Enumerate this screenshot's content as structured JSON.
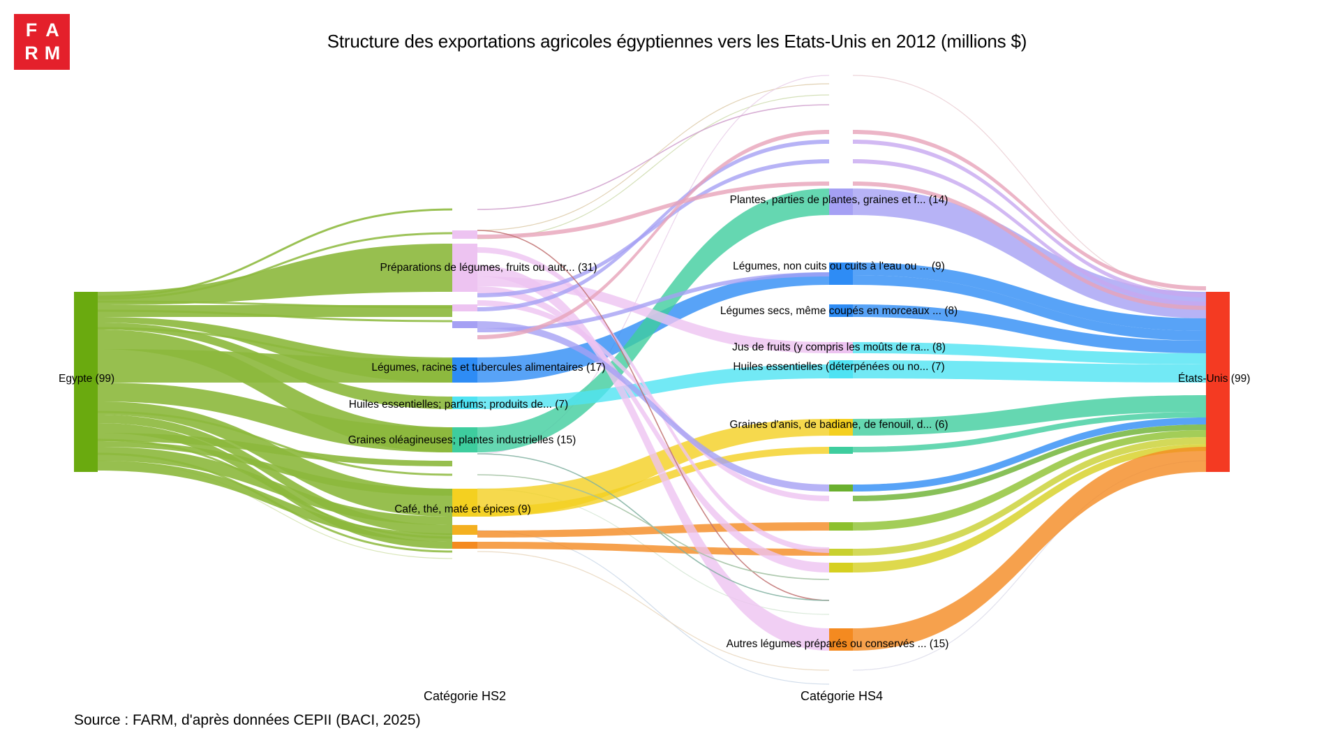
{
  "logo": {
    "letters": [
      "F",
      "A",
      "R",
      "M"
    ]
  },
  "title": "Structure des exportations agricoles égyptiennes vers les Etats-Unis en 2012 (millions $)",
  "source": "Source : FARM, d'après données CEPII (BACI, 2025)",
  "colors": {
    "source": "#6aaa0f",
    "target": "#f43a22",
    "flow_source": "#8cb83c",
    "prep": "#edc3f1",
    "legumes": "#2e8cf5",
    "huiles": "#4fe3f3",
    "graines": "#3ecd9e",
    "cafe": "#f4d020",
    "plantes": "#a5a0f4",
    "autres": "#f48a20"
  },
  "chart_data": {
    "type": "sankey",
    "title": "Structure des exportations agricoles égyptiennes vers les Etats-Unis en 2012 (millions $)",
    "unit": "millions $",
    "stages": [
      "",
      "Catégorie HS2",
      "Catégorie HS4",
      ""
    ],
    "source_node": {
      "label": "Egypte (99)",
      "value": 99
    },
    "target_node": {
      "label": "États-Unis (99)",
      "value": 99
    },
    "hs2": [
      {
        "label": "Préparations de légumes, fruits ou autr... (31)",
        "value": 31
      },
      {
        "label": "Légumes, racines et tubercules alimentaires (17)",
        "value": 17
      },
      {
        "label": "Huiles essentielles; parfums; produits de... (7)",
        "value": 7
      },
      {
        "label": "Graines oléagineuses; plantes industrielles (15)",
        "value": 15
      },
      {
        "label": "Café, thé, maté et épices (9)",
        "value": 9
      }
    ],
    "hs4": [
      {
        "label": "Plantes, parties de plantes, graines et f... (14)",
        "value": 14
      },
      {
        "label": "Légumes, non cuits ou cuits à l'eau ou ... (9)",
        "value": 9
      },
      {
        "label": "Légumes secs, même coupés en morceaux ... (8)",
        "value": 8
      },
      {
        "label": "Jus de fruits (y compris les moûts de ra... (8)",
        "value": 8
      },
      {
        "label": "Huiles essentielles (déterpénées ou no... (7)",
        "value": 7
      },
      {
        "label": "Graines d'anis, de badiane, de fenouil, d... (6)",
        "value": 6
      },
      {
        "label": "Autres légumes préparés ou conservés ... (15)",
        "value": 15
      }
    ]
  }
}
